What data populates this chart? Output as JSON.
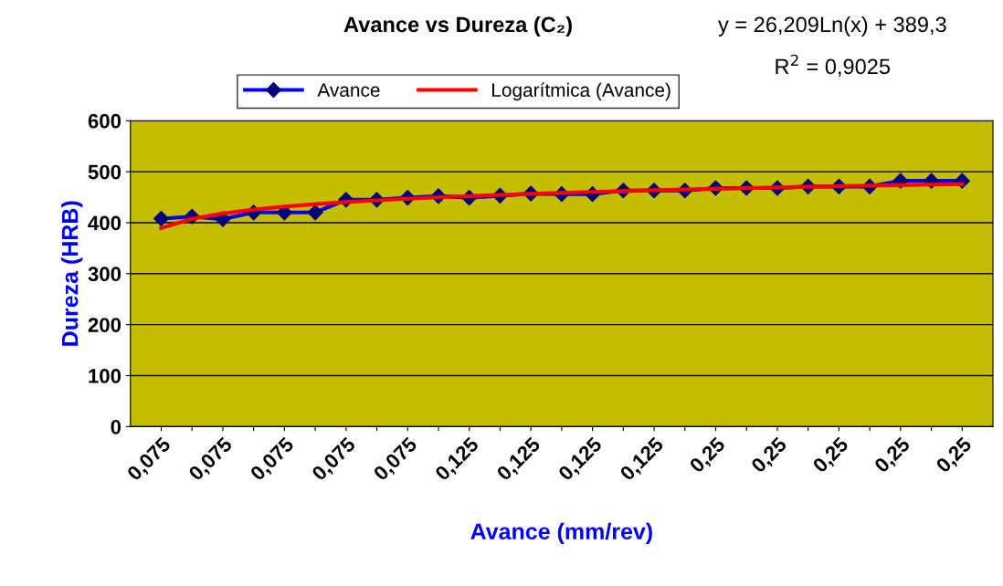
{
  "chart_data": {
    "type": "line",
    "title": "Avance vs Dureza (C₂)",
    "xlabel": "Avance (mm/rev)",
    "ylabel": "Dureza (HRB)",
    "categories": [
      "0,075",
      null,
      "0,075",
      null,
      "0,075",
      null,
      "0,075",
      null,
      "0,075",
      null,
      "0,125",
      null,
      "0,125",
      null,
      "0,125",
      null,
      "0,125",
      null,
      "0,25",
      null,
      "0,25",
      null,
      "0,25",
      null,
      "0,25",
      null,
      "0,25"
    ],
    "series": [
      {
        "name": "Avance",
        "color": "#0000ff",
        "marker": "diamond",
        "values": [
          408,
          412,
          407,
          420,
          420,
          420,
          445,
          445,
          449,
          452,
          449,
          453,
          457,
          456,
          456,
          463,
          463,
          463,
          468,
          468,
          468,
          471,
          471,
          471,
          482,
          482,
          482
        ]
      },
      {
        "name": "Logarítmica (Avance)",
        "color": "#ff0000",
        "marker": "none",
        "values": [
          389.3,
          407.5,
          418.1,
          425.6,
          431.5,
          436.3,
          440.3,
          443.8,
          446.9,
          449.6,
          452.1,
          454.4,
          456.5,
          458.5,
          460.3,
          462.0,
          463.6,
          465.1,
          466.5,
          467.8,
          469.1,
          470.3,
          471.5,
          472.6,
          473.7,
          474.7,
          475.7
        ]
      }
    ],
    "annotations": [
      "y = 26,209Ln(x) + 389,3",
      "R$^{2}$ = 0,9025"
    ],
    "ylim": [
      0,
      600
    ],
    "yticks": [
      0,
      100,
      200,
      300,
      400,
      500,
      600
    ],
    "grid": "y",
    "legend": "top",
    "line_style": "solid"
  }
}
